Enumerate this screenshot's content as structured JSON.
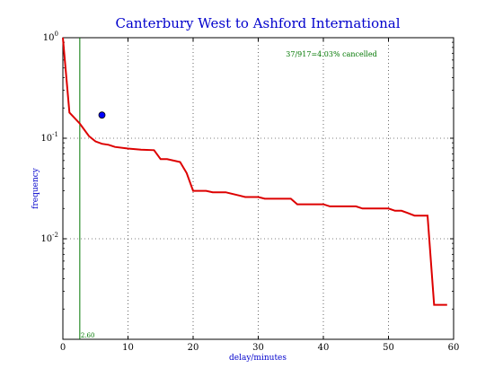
{
  "chart_data": {
    "type": "line",
    "title": "Canterbury West to Ashford International",
    "xlabel": "delay/minutes",
    "ylabel": "frequency",
    "xlim": [
      0,
      60
    ],
    "ylim": [
      0.001,
      1
    ],
    "yscale": "log",
    "grid": true,
    "x_ticks": [
      0,
      10,
      20,
      30,
      40,
      50,
      60
    ],
    "y_ticks": [
      {
        "value": 1,
        "base": "10",
        "exp": "0"
      },
      {
        "value": 0.1,
        "base": "10",
        "exp": "-1"
      },
      {
        "value": 0.01,
        "base": "10",
        "exp": "-2"
      }
    ],
    "series": [
      {
        "color": "#dd0000",
        "points": [
          [
            0,
            1.0
          ],
          [
            1,
            0.18
          ],
          [
            2.6,
            0.14
          ],
          [
            4,
            0.105
          ],
          [
            5,
            0.093
          ],
          [
            6,
            0.088
          ],
          [
            7,
            0.086
          ],
          [
            8,
            0.082
          ],
          [
            10,
            0.079
          ],
          [
            12,
            0.077
          ],
          [
            14,
            0.076
          ],
          [
            15,
            0.062
          ],
          [
            16,
            0.062
          ],
          [
            18,
            0.058
          ],
          [
            19,
            0.045
          ],
          [
            20,
            0.03
          ],
          [
            22,
            0.03
          ],
          [
            23,
            0.029
          ],
          [
            25,
            0.029
          ],
          [
            27,
            0.027
          ],
          [
            28,
            0.026
          ],
          [
            30,
            0.026
          ],
          [
            31,
            0.025
          ],
          [
            35,
            0.025
          ],
          [
            36,
            0.022
          ],
          [
            40,
            0.022
          ],
          [
            41,
            0.021
          ],
          [
            45,
            0.021
          ],
          [
            46,
            0.02
          ],
          [
            50,
            0.02
          ],
          [
            51,
            0.019
          ],
          [
            52,
            0.019
          ],
          [
            53,
            0.018
          ],
          [
            54,
            0.017
          ],
          [
            56,
            0.017
          ],
          [
            57,
            0.0022
          ],
          [
            59,
            0.0022
          ]
        ]
      }
    ],
    "marker": {
      "x": 6,
      "y": 0.17,
      "color": "#0000ff"
    },
    "vertical_line": {
      "x": 2.6,
      "label": "2.60",
      "color": "#007700"
    },
    "annotation": "37/917=4.03% cancelled"
  }
}
